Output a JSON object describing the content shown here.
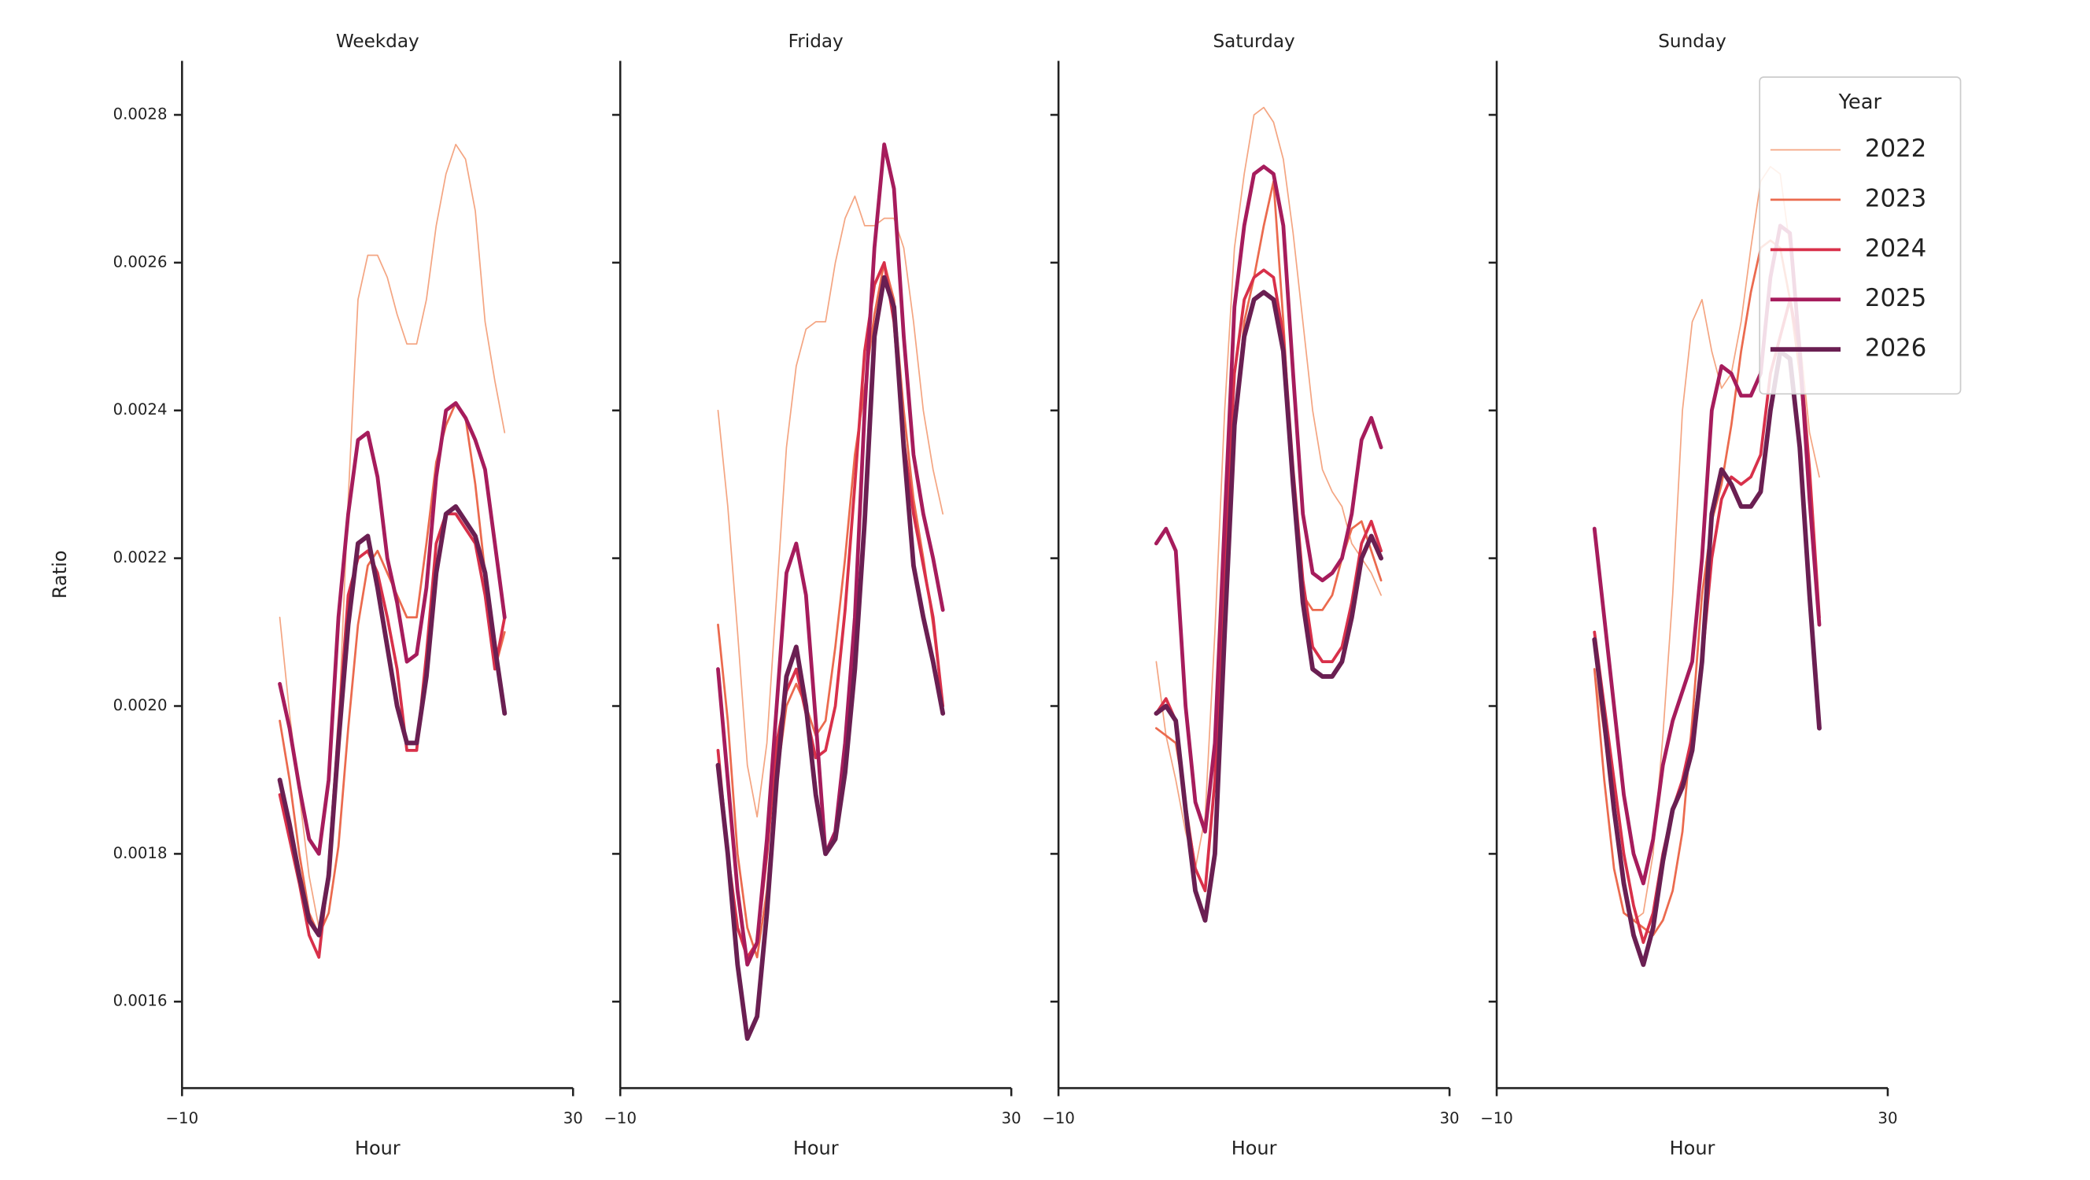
{
  "chart_data": [
    {
      "type": "line",
      "title": "Weekday",
      "xlabel": "Hour",
      "ylabel": "Ratio",
      "x": [
        0,
        1,
        2,
        3,
        4,
        5,
        6,
        7,
        8,
        9,
        10,
        11,
        12,
        13,
        14,
        15,
        16,
        17,
        18,
        19,
        20,
        21,
        22,
        23
      ],
      "xlim": [
        -10,
        30
      ],
      "xticks": [
        {
          "value": -10,
          "label": "−10"
        },
        30
      ],
      "ylim": [
        0.001483,
        0.002873
      ],
      "yticks": [
        0.0016,
        0.0018,
        {
          "value": 0.002,
          "label": "0.0020"
        },
        0.0022,
        0.0024,
        0.0026,
        0.0028
      ],
      "series": [
        {
          "name": "2022",
          "color": "#f4a582",
          "width": 1,
          "values": [
            0.00212,
            0.00199,
            0.00188,
            0.00177,
            0.0017,
            0.00177,
            0.00197,
            0.00228,
            0.00255,
            0.00261,
            0.00261,
            0.00258,
            0.00253,
            0.00249,
            0.00249,
            0.00255,
            0.00265,
            0.00272,
            0.00276,
            0.00274,
            0.00267,
            0.00252,
            0.00244,
            0.00237
          ]
        },
        {
          "name": "2023",
          "color": "#eb6a4e",
          "width": 1.6,
          "values": [
            0.00198,
            0.0019,
            0.0018,
            0.00172,
            0.00169,
            0.00172,
            0.00181,
            0.00197,
            0.00211,
            0.00219,
            0.00221,
            0.00218,
            0.00215,
            0.00212,
            0.00212,
            0.00222,
            0.00233,
            0.00238,
            0.00241,
            0.00239,
            0.0023,
            0.00218,
            0.00205,
            0.0021
          ]
        },
        {
          "name": "2024",
          "color": "#d8304a",
          "width": 2.2,
          "values": [
            0.00188,
            0.00182,
            0.00176,
            0.00169,
            0.00166,
            0.00178,
            0.00197,
            0.00215,
            0.0022,
            0.00221,
            0.00218,
            0.00212,
            0.00205,
            0.00194,
            0.00194,
            0.00207,
            0.00222,
            0.00226,
            0.00226,
            0.00224,
            0.00222,
            0.00215,
            0.00205,
            0.00212
          ]
        },
        {
          "name": "2025",
          "color": "#a61c5c",
          "width": 2.8,
          "values": [
            0.00203,
            0.00197,
            0.00189,
            0.00182,
            0.0018,
            0.0019,
            0.00212,
            0.00226,
            0.00236,
            0.00237,
            0.00231,
            0.0022,
            0.00214,
            0.00206,
            0.00207,
            0.00216,
            0.00231,
            0.0024,
            0.00241,
            0.00239,
            0.00236,
            0.00232,
            0.00222,
            0.00212
          ]
        },
        {
          "name": "2026",
          "color": "#6a1f52",
          "width": 3.4,
          "values": [
            0.0019,
            0.00184,
            0.00177,
            0.00171,
            0.00169,
            0.00177,
            0.00195,
            0.00211,
            0.00222,
            0.00223,
            0.00216,
            0.00208,
            0.002,
            0.00195,
            0.00195,
            0.00204,
            0.00218,
            0.00226,
            0.00227,
            0.00225,
            0.00223,
            0.00218,
            0.00208,
            0.00199
          ]
        }
      ]
    },
    {
      "type": "line",
      "title": "Friday",
      "xlabel": "Hour",
      "x": [
        0,
        1,
        2,
        3,
        4,
        5,
        6,
        7,
        8,
        9,
        10,
        11,
        12,
        13,
        14,
        15,
        16,
        17,
        18,
        19,
        20,
        21,
        22,
        23
      ],
      "xlim": [
        -10,
        30
      ],
      "xticks": [
        {
          "value": -10,
          "label": "−10"
        },
        30
      ],
      "series": [
        {
          "name": "2022",
          "color": "#f4a582",
          "width": 1,
          "values": [
            0.0024,
            0.00227,
            0.0021,
            0.00192,
            0.00185,
            0.00195,
            0.00215,
            0.00235,
            0.00246,
            0.00251,
            0.00252,
            0.00252,
            0.0026,
            0.00266,
            0.00269,
            0.00265,
            0.00265,
            0.00266,
            0.00266,
            0.00262,
            0.00252,
            0.0024,
            0.00232,
            0.00226
          ]
        },
        {
          "name": "2023",
          "color": "#eb6a4e",
          "width": 1.6,
          "values": [
            0.00211,
            0.00198,
            0.0018,
            0.0017,
            0.00166,
            0.00175,
            0.0019,
            0.002,
            0.00203,
            0.002,
            0.00196,
            0.00198,
            0.00208,
            0.0022,
            0.00234,
            0.00243,
            0.00253,
            0.0026,
            0.00255,
            0.0024,
            0.00228,
            0.0022,
            0.00211,
            0.002
          ]
        },
        {
          "name": "2024",
          "color": "#d8304a",
          "width": 2.2,
          "values": [
            0.00194,
            0.0018,
            0.0017,
            0.00166,
            0.00168,
            0.0018,
            0.00195,
            0.00202,
            0.00205,
            0.00199,
            0.00193,
            0.00194,
            0.002,
            0.00213,
            0.0023,
            0.00248,
            0.00257,
            0.0026,
            0.00252,
            0.00236,
            0.00226,
            0.00219,
            0.00212,
            0.002
          ]
        },
        {
          "name": "2025",
          "color": "#a61c5c",
          "width": 2.8,
          "values": [
            0.00205,
            0.0019,
            0.00175,
            0.00165,
            0.00168,
            0.00182,
            0.002,
            0.00218,
            0.00222,
            0.00215,
            0.00198,
            0.0018,
            0.00183,
            0.00195,
            0.00212,
            0.0024,
            0.00262,
            0.00276,
            0.0027,
            0.0025,
            0.00234,
            0.00226,
            0.0022,
            0.00213
          ]
        },
        {
          "name": "2026",
          "color": "#6a1f52",
          "width": 3.4,
          "values": [
            0.00192,
            0.0018,
            0.00165,
            0.00155,
            0.00158,
            0.00172,
            0.0019,
            0.00204,
            0.00208,
            0.002,
            0.00188,
            0.0018,
            0.00182,
            0.00191,
            0.00205,
            0.00225,
            0.0025,
            0.00258,
            0.00254,
            0.00235,
            0.00219,
            0.00212,
            0.00206,
            0.00199
          ]
        }
      ]
    },
    {
      "type": "line",
      "title": "Saturday",
      "xlabel": "Hour",
      "x": [
        0,
        1,
        2,
        3,
        4,
        5,
        6,
        7,
        8,
        9,
        10,
        11,
        12,
        13,
        14,
        15,
        16,
        17,
        18,
        19,
        20,
        21,
        22,
        23
      ],
      "xlim": [
        -10,
        30
      ],
      "xticks": [
        {
          "value": -10,
          "label": "−10"
        },
        30
      ],
      "series": [
        {
          "name": "2022",
          "color": "#f4a582",
          "width": 1,
          "values": [
            0.00206,
            0.00196,
            0.0019,
            0.00183,
            0.00178,
            0.00185,
            0.0021,
            0.0024,
            0.00262,
            0.00272,
            0.0028,
            0.00281,
            0.00279,
            0.00274,
            0.00264,
            0.00252,
            0.0024,
            0.00232,
            0.00229,
            0.00227,
            0.00222,
            0.0022,
            0.00218,
            0.00215
          ]
        },
        {
          "name": "2023",
          "color": "#eb6a4e",
          "width": 1.6,
          "values": [
            0.00197,
            0.00196,
            0.00195,
            0.00187,
            0.00178,
            0.00175,
            0.0019,
            0.00215,
            0.00237,
            0.00252,
            0.00258,
            0.00265,
            0.00271,
            0.00252,
            0.0023,
            0.00215,
            0.00213,
            0.00213,
            0.00215,
            0.0022,
            0.00224,
            0.00225,
            0.00221,
            0.00217
          ]
        },
        {
          "name": "2024",
          "color": "#d8304a",
          "width": 2.2,
          "values": [
            0.00199,
            0.00201,
            0.00198,
            0.00186,
            0.00178,
            0.00175,
            0.0019,
            0.0022,
            0.00245,
            0.00255,
            0.00258,
            0.00259,
            0.00258,
            0.0025,
            0.00232,
            0.00217,
            0.00208,
            0.00206,
            0.00206,
            0.00208,
            0.00214,
            0.00222,
            0.00225,
            0.00221
          ]
        },
        {
          "name": "2025",
          "color": "#a61c5c",
          "width": 2.8,
          "values": [
            0.00222,
            0.00224,
            0.00221,
            0.002,
            0.00187,
            0.00183,
            0.00195,
            0.00225,
            0.00254,
            0.00265,
            0.00272,
            0.00273,
            0.00272,
            0.00265,
            0.00245,
            0.00226,
            0.00218,
            0.00217,
            0.00218,
            0.0022,
            0.00226,
            0.00236,
            0.00239,
            0.00235
          ]
        },
        {
          "name": "2026",
          "color": "#6a1f52",
          "width": 3.4,
          "values": [
            0.00199,
            0.002,
            0.00198,
            0.00186,
            0.00175,
            0.00171,
            0.0018,
            0.0021,
            0.00238,
            0.0025,
            0.00255,
            0.00256,
            0.00255,
            0.00248,
            0.0023,
            0.00214,
            0.00205,
            0.00204,
            0.00204,
            0.00206,
            0.00212,
            0.0022,
            0.00223,
            0.0022
          ]
        }
      ]
    },
    {
      "type": "line",
      "title": "Sunday",
      "xlabel": "Hour",
      "legend_title": "Year",
      "legend": "upper right",
      "x": [
        0,
        1,
        2,
        3,
        4,
        5,
        6,
        7,
        8,
        9,
        10,
        11,
        12,
        13,
        14,
        15,
        16,
        17,
        18,
        19,
        20,
        21,
        22,
        23
      ],
      "xlim": [
        -10,
        30
      ],
      "xticks": [
        {
          "value": -10,
          "label": "−10"
        },
        30
      ],
      "series": [
        {
          "name": "2022",
          "color": "#f4a582",
          "width": 1,
          "values": [
            0.00205,
            0.00196,
            0.00185,
            0.00175,
            0.00171,
            0.00172,
            0.0018,
            0.00196,
            0.00215,
            0.0024,
            0.00252,
            0.00255,
            0.00248,
            0.00243,
            0.00245,
            0.00252,
            0.00262,
            0.00271,
            0.00273,
            0.00272,
            0.00262,
            0.0025,
            0.00237,
            0.00231
          ]
        },
        {
          "name": "2023",
          "color": "#eb6a4e",
          "width": 1.6,
          "values": [
            0.00205,
            0.0019,
            0.00178,
            0.00172,
            0.00171,
            0.0017,
            0.00169,
            0.00171,
            0.00175,
            0.00183,
            0.00198,
            0.00215,
            0.00225,
            0.0023,
            0.00238,
            0.00248,
            0.00256,
            0.00262,
            0.00263,
            0.00262,
            0.00255,
            0.00245,
            0.0023,
            0.00212
          ]
        },
        {
          "name": "2024",
          "color": "#d8304a",
          "width": 2.2,
          "values": [
            0.0021,
            0.002,
            0.0019,
            0.0018,
            0.00173,
            0.00168,
            0.00172,
            0.0018,
            0.00186,
            0.0019,
            0.00196,
            0.00206,
            0.0022,
            0.00228,
            0.00231,
            0.0023,
            0.00231,
            0.00234,
            0.00245,
            0.0025,
            0.00255,
            0.00248,
            0.00232,
            0.00212
          ]
        },
        {
          "name": "2025",
          "color": "#a61c5c",
          "width": 2.8,
          "values": [
            0.00224,
            0.00212,
            0.002,
            0.00188,
            0.0018,
            0.00176,
            0.00182,
            0.00192,
            0.00198,
            0.00202,
            0.00206,
            0.0022,
            0.0024,
            0.00246,
            0.00245,
            0.00242,
            0.00242,
            0.00245,
            0.00258,
            0.00265,
            0.00264,
            0.00248,
            0.00228,
            0.00211
          ]
        },
        {
          "name": "2026",
          "color": "#6a1f52",
          "width": 3.4,
          "values": [
            0.00209,
            0.00198,
            0.00186,
            0.00176,
            0.00169,
            0.00165,
            0.0017,
            0.00179,
            0.00186,
            0.00189,
            0.00194,
            0.00206,
            0.00226,
            0.00232,
            0.0023,
            0.00227,
            0.00227,
            0.00229,
            0.0024,
            0.00248,
            0.00247,
            0.00235,
            0.00215,
            0.00197
          ]
        }
      ]
    }
  ]
}
